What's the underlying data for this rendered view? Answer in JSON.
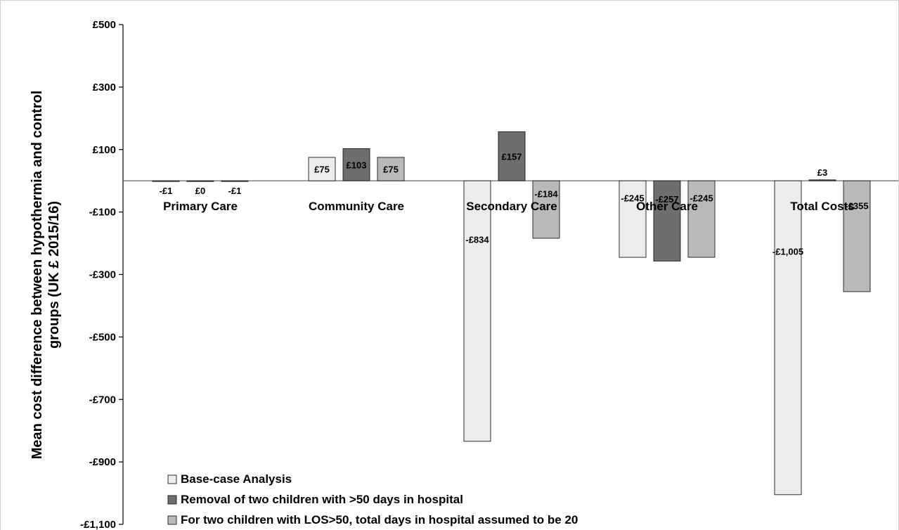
{
  "chart_data": {
    "type": "bar",
    "title": "",
    "ylabel": "Mean cost difference between hypothermia and control groups (UK £ 2015/16)",
    "xlabel": "",
    "ylim": [
      -1100,
      500
    ],
    "yticks": [
      500,
      300,
      100,
      -100,
      -300,
      -500,
      -700,
      -900,
      -1100
    ],
    "ytick_labels": [
      "£500",
      "£300",
      "£100",
      "-£100",
      "-£300",
      "-£500",
      "-£700",
      "-£900",
      "-£1,100"
    ],
    "categories": [
      "Primary Care",
      "Community Care",
      "Secondary Care",
      "Other Care",
      "Total Costs"
    ],
    "series": [
      {
        "name": "Base-case Analysis",
        "color": "#ececec",
        "values": [
          -1,
          75,
          -834,
          -245,
          -1005
        ],
        "labels": [
          "-£1",
          "£75",
          "-£834",
          "-£245",
          "-£1,005"
        ]
      },
      {
        "name": "Removal of two children with >50 days in hospital",
        "color": "#6e6e6e",
        "values": [
          0,
          103,
          157,
          -257,
          3
        ],
        "labels": [
          "£0",
          "£103",
          "£157",
          "-£257",
          "£3"
        ]
      },
      {
        "name": "For two children with LOS>50, total days in hospital assumed to be 20",
        "color": "#b9b9b9",
        "values": [
          -1,
          75,
          -184,
          -245,
          -355
        ],
        "labels": [
          "-£1",
          "£75",
          "-£184",
          "-£245",
          "-£355"
        ]
      }
    ],
    "grid": false,
    "legend_position": "bottom-left"
  }
}
